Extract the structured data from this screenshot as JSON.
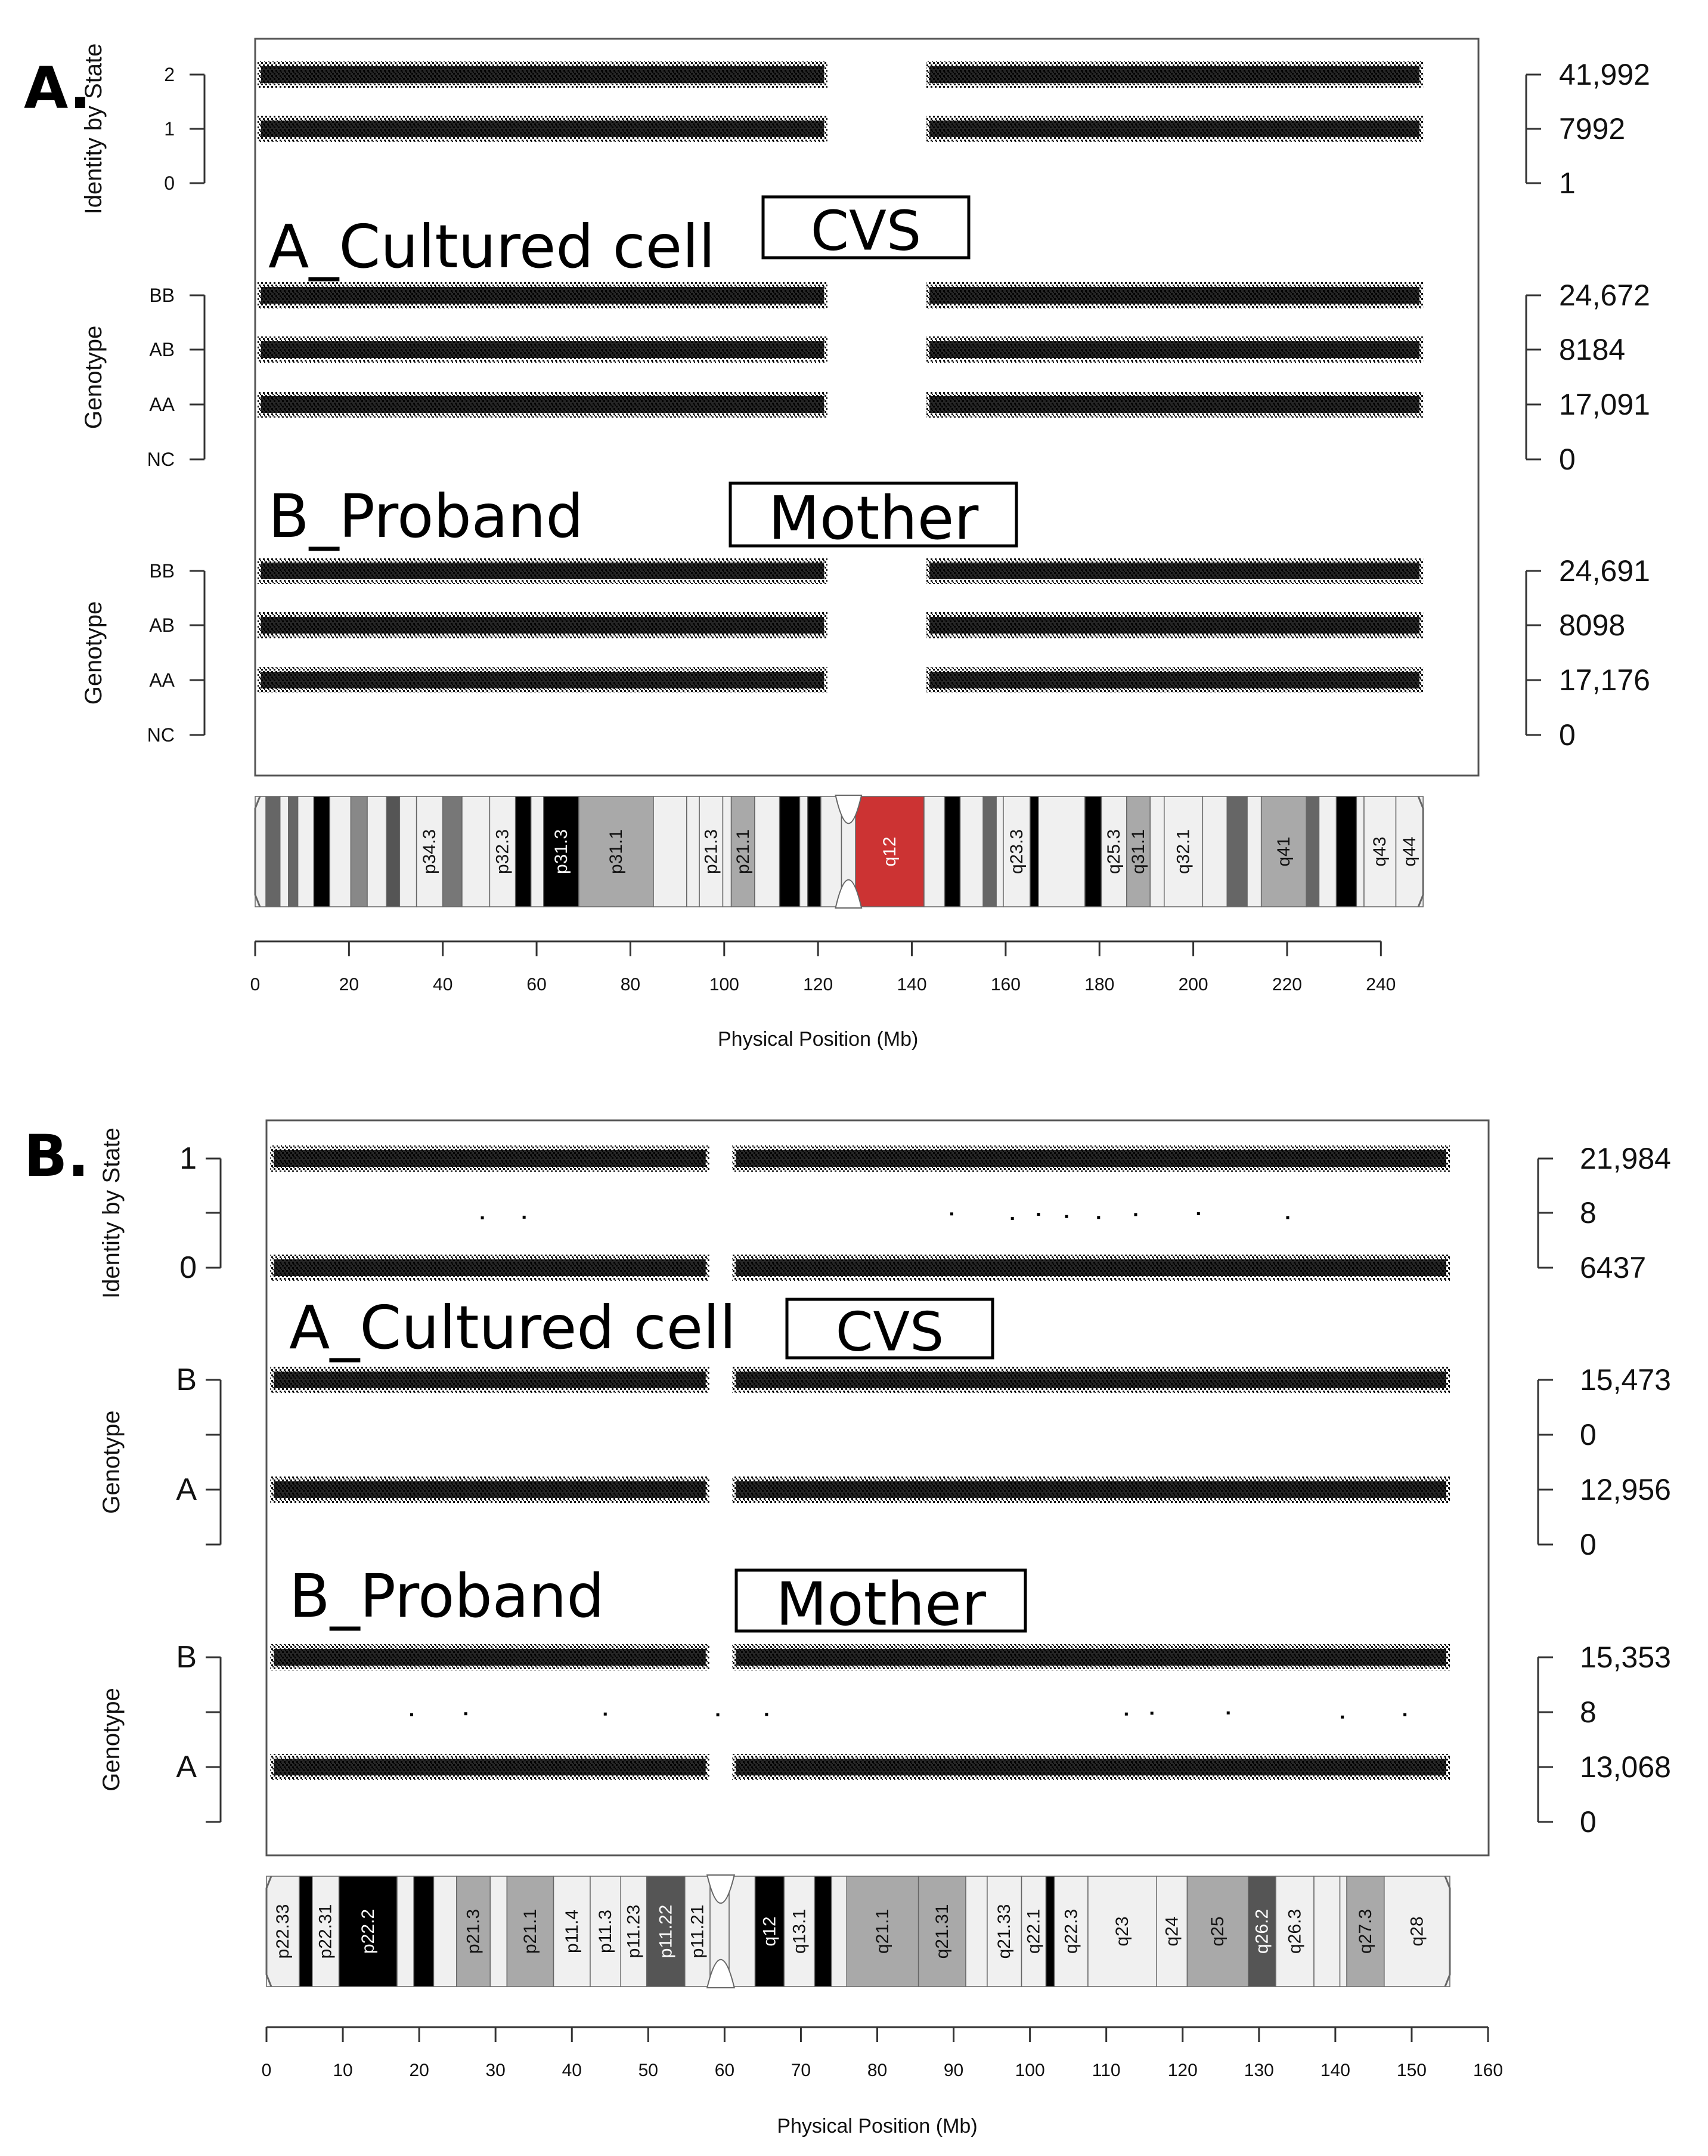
{
  "chart_data": [
    {
      "panel": "A.",
      "type": "scatter",
      "xlabel": "Physical Position (Mb)",
      "xlim": [
        0,
        250
      ],
      "xticks": [
        0,
        20,
        40,
        60,
        80,
        100,
        120,
        140,
        160,
        180,
        200,
        220,
        240
      ],
      "gap_mb": [
        122,
        143
      ],
      "chrom_end_mb": 249,
      "tracks": [
        {
          "ylabel": "Identity by State",
          "levels": [
            "2",
            "1",
            "0"
          ],
          "counts": [
            "41,992",
            "7992",
            "1"
          ],
          "bands": [
            true,
            true,
            false
          ]
        },
        {
          "ylabel": "Genotype",
          "levels": [
            "BB",
            "AB",
            "AA",
            "NC"
          ],
          "counts": [
            "24,672",
            "8184",
            "17,091",
            "0"
          ],
          "bands": [
            true,
            true,
            true,
            false
          ]
        },
        {
          "ylabel": "Genotype",
          "levels": [
            "BB",
            "AB",
            "AA",
            "NC"
          ],
          "counts": [
            "24,691",
            "8098",
            "17,176",
            "0"
          ],
          "bands": [
            true,
            true,
            true,
            false
          ]
        }
      ],
      "annotations": {
        "sample1": "A_Cultured cell",
        "box1": "CVS",
        "sample2": "B_Proband",
        "box2": "Mother"
      },
      "ideogram": [
        {
          "s": 0,
          "e": 2.3,
          "f": "#f0f0f0",
          "l": ""
        },
        {
          "s": 2.3,
          "e": 5.3,
          "f": "#666666",
          "l": ""
        },
        {
          "s": 5.3,
          "e": 7.1,
          "f": "#f0f0f0",
          "l": ""
        },
        {
          "s": 7.1,
          "e": 9.1,
          "f": "#666666",
          "l": ""
        },
        {
          "s": 9.1,
          "e": 12.5,
          "f": "#f0f0f0",
          "l": ""
        },
        {
          "s": 12.5,
          "e": 15.9,
          "f": "#000000",
          "l": ""
        },
        {
          "s": 15.9,
          "e": 20.4,
          "f": "#f0f0f0",
          "l": ""
        },
        {
          "s": 20.4,
          "e": 23.9,
          "f": "#888888",
          "l": ""
        },
        {
          "s": 23.9,
          "e": 28.0,
          "f": "#f0f0f0",
          "l": ""
        },
        {
          "s": 28.0,
          "e": 30.8,
          "f": "#555555",
          "l": ""
        },
        {
          "s": 30.8,
          "e": 34.4,
          "f": "#f0f0f0",
          "l": ""
        },
        {
          "s": 34.4,
          "e": 40.0,
          "f": "#f0f0f0",
          "l": "p34.3"
        },
        {
          "s": 40.0,
          "e": 44.1,
          "f": "#777777",
          "l": ""
        },
        {
          "s": 44.1,
          "e": 50.0,
          "f": "#f0f0f0",
          "l": ""
        },
        {
          "s": 50.0,
          "e": 55.5,
          "f": "#f0f0f0",
          "l": "p32.3"
        },
        {
          "s": 55.5,
          "e": 58.8,
          "f": "#000000",
          "l": ""
        },
        {
          "s": 58.8,
          "e": 61.5,
          "f": "#f0f0f0",
          "l": ""
        },
        {
          "s": 61.5,
          "e": 69.0,
          "f": "#000000",
          "l": "p31.3"
        },
        {
          "s": 69.0,
          "e": 84.9,
          "f": "#a9a9a9",
          "l": "p31.1"
        },
        {
          "s": 84.9,
          "e": 92.0,
          "f": "#f0f0f0",
          "l": ""
        },
        {
          "s": 92.0,
          "e": 94.7,
          "f": "#f0f0f0",
          "l": ""
        },
        {
          "s": 94.7,
          "e": 99.7,
          "f": "#f0f0f0",
          "l": "p21.3"
        },
        {
          "s": 99.7,
          "e": 101.5,
          "f": "#f0f0f0",
          "l": ""
        },
        {
          "s": 101.5,
          "e": 106.5,
          "f": "#a9a9a9",
          "l": "p21.1"
        },
        {
          "s": 106.5,
          "e": 111.8,
          "f": "#f0f0f0",
          "l": ""
        },
        {
          "s": 111.8,
          "e": 116.1,
          "f": "#000000",
          "l": ""
        },
        {
          "s": 116.1,
          "e": 117.8,
          "f": "#f0f0f0",
          "l": ""
        },
        {
          "s": 117.8,
          "e": 120.6,
          "f": "#000000",
          "l": ""
        },
        {
          "s": 120.6,
          "e": 125.0,
          "f": "#f0f0f0",
          "l": ""
        },
        {
          "s": 125.0,
          "e": 128.0,
          "f": "#f0f0f0",
          "l": ""
        },
        {
          "s": 128.0,
          "e": 142.6,
          "f": "#cc3333",
          "l": "q12"
        },
        {
          "s": 142.6,
          "e": 147.0,
          "f": "#f0f0f0",
          "l": ""
        },
        {
          "s": 147.0,
          "e": 150.3,
          "f": "#000000",
          "l": ""
        },
        {
          "s": 150.3,
          "e": 155.2,
          "f": "#f0f0f0",
          "l": ""
        },
        {
          "s": 155.2,
          "e": 158.0,
          "f": "#666666",
          "l": ""
        },
        {
          "s": 158.0,
          "e": 159.5,
          "f": "#f0f0f0",
          "l": ""
        },
        {
          "s": 159.5,
          "e": 165.2,
          "f": "#f0f0f0",
          "l": "q23.3"
        },
        {
          "s": 165.2,
          "e": 167.0,
          "f": "#000000",
          "l": ""
        },
        {
          "s": 167.0,
          "e": 176.9,
          "f": "#f0f0f0",
          "l": ""
        },
        {
          "s": 176.9,
          "e": 180.4,
          "f": "#000000",
          "l": ""
        },
        {
          "s": 180.4,
          "e": 185.8,
          "f": "#f0f0f0",
          "l": "q25.3"
        },
        {
          "s": 185.8,
          "e": 190.8,
          "f": "#a9a9a9",
          "l": "q31.1"
        },
        {
          "s": 190.8,
          "e": 193.8,
          "f": "#f0f0f0",
          "l": ""
        },
        {
          "s": 193.8,
          "e": 202.0,
          "f": "#f0f0f0",
          "l": "q32.1"
        },
        {
          "s": 202.0,
          "e": 207.2,
          "f": "#f0f0f0",
          "l": ""
        },
        {
          "s": 207.2,
          "e": 211.5,
          "f": "#666666",
          "l": ""
        },
        {
          "s": 211.5,
          "e": 214.5,
          "f": "#f0f0f0",
          "l": ""
        },
        {
          "s": 214.5,
          "e": 224.1,
          "f": "#a9a9a9",
          "l": "q41"
        },
        {
          "s": 224.1,
          "e": 226.8,
          "f": "#666666",
          "l": ""
        },
        {
          "s": 226.8,
          "e": 230.5,
          "f": "#f0f0f0",
          "l": ""
        },
        {
          "s": 230.5,
          "e": 234.8,
          "f": "#000000",
          "l": ""
        },
        {
          "s": 234.8,
          "e": 236.4,
          "f": "#f0f0f0",
          "l": ""
        },
        {
          "s": 236.4,
          "e": 243.2,
          "f": "#f0f0f0",
          "l": "q43"
        },
        {
          "s": 243.2,
          "e": 249.0,
          "f": "#f0f0f0",
          "l": "q44"
        }
      ]
    },
    {
      "panel": "B.",
      "type": "scatter",
      "xlabel": "Physical Position (Mb)",
      "xlim": [
        0,
        160
      ],
      "xticks": [
        0,
        10,
        20,
        30,
        40,
        50,
        60,
        70,
        80,
        90,
        100,
        110,
        120,
        130,
        140,
        150,
        160
      ],
      "gap_mb": [
        58,
        61
      ],
      "chrom_end_mb": 155,
      "tracks": [
        {
          "ylabel": "Identity by State",
          "levels": [
            "1",
            "",
            "0"
          ],
          "counts": [
            "21,984",
            "8",
            "6437"
          ],
          "bands": [
            true,
            "sparse",
            true
          ]
        },
        {
          "ylabel": "Genotype",
          "levels": [
            "B",
            "",
            "A",
            ""
          ],
          "counts": [
            "15,473",
            "0",
            "12,956",
            "0"
          ],
          "bands": [
            true,
            false,
            true,
            false
          ]
        },
        {
          "ylabel": "Genotype",
          "levels": [
            "B",
            "",
            "A",
            ""
          ],
          "counts": [
            "15,353",
            "8",
            "13,068",
            "0"
          ],
          "bands": [
            true,
            "sparse",
            true,
            false
          ]
        }
      ],
      "annotations": {
        "sample1": "A_Cultured cell",
        "box1": "CVS",
        "sample2": "B_Proband",
        "box2": "Mother"
      },
      "ideogram": [
        {
          "s": 0,
          "e": 4.3,
          "f": "#f0f0f0",
          "l": "p22.33"
        },
        {
          "s": 4.3,
          "e": 6.0,
          "f": "#000000",
          "l": ""
        },
        {
          "s": 6.0,
          "e": 9.5,
          "f": "#f0f0f0",
          "l": "p22.31"
        },
        {
          "s": 9.5,
          "e": 17.1,
          "f": "#000000",
          "l": "p22.2"
        },
        {
          "s": 17.1,
          "e": 19.3,
          "f": "#f0f0f0",
          "l": ""
        },
        {
          "s": 19.3,
          "e": 21.9,
          "f": "#000000",
          "l": ""
        },
        {
          "s": 21.9,
          "e": 24.9,
          "f": "#f0f0f0",
          "l": ""
        },
        {
          "s": 24.9,
          "e": 29.3,
          "f": "#a9a9a9",
          "l": "p21.3"
        },
        {
          "s": 29.3,
          "e": 31.5,
          "f": "#f0f0f0",
          "l": ""
        },
        {
          "s": 31.5,
          "e": 37.6,
          "f": "#a9a9a9",
          "l": "p21.1"
        },
        {
          "s": 37.6,
          "e": 42.4,
          "f": "#f0f0f0",
          "l": "p11.4"
        },
        {
          "s": 42.4,
          "e": 46.4,
          "f": "#f0f0f0",
          "l": "p11.3"
        },
        {
          "s": 46.4,
          "e": 49.8,
          "f": "#f0f0f0",
          "l": "p11.23"
        },
        {
          "s": 49.8,
          "e": 54.8,
          "f": "#555555",
          "l": "p11.22"
        },
        {
          "s": 54.8,
          "e": 58.1,
          "f": "#f0f0f0",
          "l": "p11.21"
        },
        {
          "s": 58.1,
          "e": 60.6,
          "f": "#f0f0f0",
          "l": ""
        },
        {
          "s": 60.6,
          "e": 64.0,
          "f": "#f0f0f0",
          "l": ""
        },
        {
          "s": 64.0,
          "e": 67.8,
          "f": "#000000",
          "l": "q12"
        },
        {
          "s": 67.8,
          "e": 71.8,
          "f": "#f0f0f0",
          "l": "q13.1"
        },
        {
          "s": 71.8,
          "e": 74.0,
          "f": "#000000",
          "l": ""
        },
        {
          "s": 74.0,
          "e": 76.0,
          "f": "#f0f0f0",
          "l": ""
        },
        {
          "s": 76.0,
          "e": 85.4,
          "f": "#a9a9a9",
          "l": "q21.1"
        },
        {
          "s": 85.4,
          "e": 91.6,
          "f": "#a9a9a9",
          "l": "q21.31"
        },
        {
          "s": 91.6,
          "e": 94.4,
          "f": "#f0f0f0",
          "l": ""
        },
        {
          "s": 94.4,
          "e": 98.9,
          "f": "#f0f0f0",
          "l": "q21.33"
        },
        {
          "s": 98.9,
          "e": 102.1,
          "f": "#f0f0f0",
          "l": "q22.1"
        },
        {
          "s": 102.1,
          "e": 103.2,
          "f": "#000000",
          "l": ""
        },
        {
          "s": 103.2,
          "e": 107.6,
          "f": "#f0f0f0",
          "l": "q22.3"
        },
        {
          "s": 107.6,
          "e": 116.6,
          "f": "#f0f0f0",
          "l": "q23"
        },
        {
          "s": 116.6,
          "e": 120.6,
          "f": "#f0f0f0",
          "l": "q24"
        },
        {
          "s": 120.6,
          "e": 128.6,
          "f": "#a9a9a9",
          "l": "q25"
        },
        {
          "s": 128.6,
          "e": 132.2,
          "f": "#555555",
          "l": "q26.2"
        },
        {
          "s": 132.2,
          "e": 137.2,
          "f": "#f0f0f0",
          "l": "q26.3"
        },
        {
          "s": 137.2,
          "e": 140.6,
          "f": "#f0f0f0",
          "l": ""
        },
        {
          "s": 140.6,
          "e": 141.5,
          "f": "#f0f0f0",
          "l": ""
        },
        {
          "s": 141.5,
          "e": 146.4,
          "f": "#a9a9a9",
          "l": "q27.3"
        },
        {
          "s": 146.4,
          "e": 155.0,
          "f": "#f0f0f0",
          "l": "q28"
        }
      ]
    }
  ]
}
